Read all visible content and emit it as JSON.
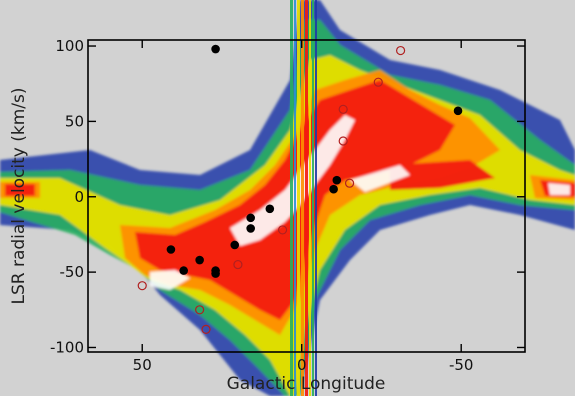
{
  "chart_data": {
    "type": "scatter",
    "background": "position-velocity map (colour-scale intensity image)",
    "xlabel": "Galactic Longitude",
    "ylabel": "LSR radial velocity (km/s)",
    "xlim": [
      67,
      -70
    ],
    "ylim": [
      -103,
      104
    ],
    "x_ticks": [
      50,
      0,
      -50
    ],
    "y_ticks": [
      100,
      50,
      0,
      -50,
      -100
    ],
    "series": [
      {
        "marker": "filled-circle",
        "points": [
          {
            "x": 27,
            "y": 98
          },
          {
            "x": -49,
            "y": 57
          },
          {
            "x": -11,
            "y": 11
          },
          {
            "x": -10,
            "y": 5
          },
          {
            "x": 10,
            "y": -8
          },
          {
            "x": 16,
            "y": -14
          },
          {
            "x": 16,
            "y": -21
          },
          {
            "x": 21,
            "y": -32
          },
          {
            "x": 41,
            "y": -35
          },
          {
            "x": 32,
            "y": -42
          },
          {
            "x": 37,
            "y": -49
          },
          {
            "x": 27,
            "y": -49
          },
          {
            "x": 27,
            "y": -51
          }
        ]
      },
      {
        "marker": "open-circle",
        "points": [
          {
            "x": -31,
            "y": 97
          },
          {
            "x": -24,
            "y": 76
          },
          {
            "x": -13,
            "y": 58
          },
          {
            "x": -13,
            "y": 37
          },
          {
            "x": -15,
            "y": 9
          },
          {
            "x": 6,
            "y": -22
          },
          {
            "x": 20,
            "y": -45
          },
          {
            "x": 50,
            "y": -59
          },
          {
            "x": 32,
            "y": -75
          },
          {
            "x": 30,
            "y": -88
          }
        ]
      }
    ],
    "colors": {
      "background": "#d2d2d2",
      "plot_border": "#000000",
      "marker": "#000000",
      "open_marker_edge": "#b02020",
      "colormap": [
        "#d2d2d2",
        "#1e3aa8",
        "#2a8fd8",
        "#28b060",
        "#e8e000",
        "#ff9000",
        "#f41a10",
        "#ffffff"
      ]
    },
    "grid": false,
    "legend": "none"
  }
}
